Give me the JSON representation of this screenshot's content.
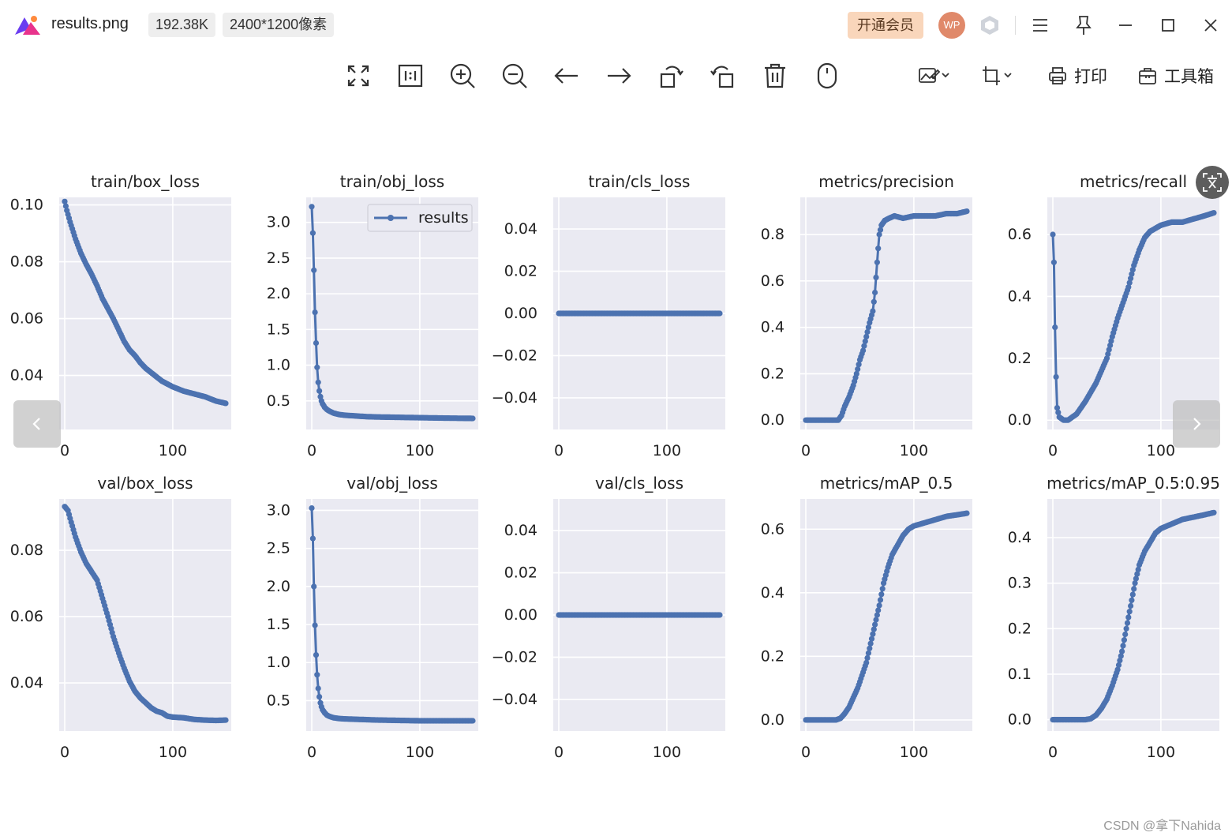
{
  "titlebar": {
    "filename": "results.png",
    "file_size": "192.38K",
    "dimensions": "2400*1200像素",
    "vip_label": "开通会员",
    "avatar_text": "WP"
  },
  "toolbar": {
    "print_label": "打印",
    "toolbox_label": "工具箱"
  },
  "watermark": "CSDN @拿下Nahida",
  "colors": {
    "series": "#4c72b0",
    "panel": "#eaeaf2",
    "grid": "#ffffff",
    "vip_bg": "#f9d6bb",
    "avatar_bg": "#e0896a"
  },
  "chart_data": [
    {
      "type": "line",
      "title": "train/box_loss",
      "legend": "",
      "x_range": [
        0,
        149
      ],
      "ylim": [
        0.021,
        0.10265
      ],
      "yticks": [
        0.04,
        0.06,
        0.08,
        0.1
      ],
      "ytick_labels": [
        "0.04",
        "0.06",
        "0.08",
        "0.10"
      ],
      "xticks": [
        0,
        100
      ],
      "xtick_labels": [
        "0",
        "100"
      ],
      "curve": [
        [
          0,
          0.1012
        ],
        [
          2,
          0.098
        ],
        [
          5,
          0.094
        ],
        [
          10,
          0.088
        ],
        [
          15,
          0.083
        ],
        [
          20,
          0.079
        ],
        [
          25,
          0.0755
        ],
        [
          30,
          0.0715
        ],
        [
          35,
          0.067
        ],
        [
          40,
          0.0635
        ],
        [
          45,
          0.06
        ],
        [
          50,
          0.056
        ],
        [
          55,
          0.052
        ],
        [
          60,
          0.049
        ],
        [
          65,
          0.047
        ],
        [
          70,
          0.0445
        ],
        [
          75,
          0.0425
        ],
        [
          80,
          0.041
        ],
        [
          85,
          0.0395
        ],
        [
          90,
          0.038
        ],
        [
          95,
          0.037
        ],
        [
          100,
          0.036
        ],
        [
          110,
          0.0345
        ],
        [
          120,
          0.0335
        ],
        [
          130,
          0.0325
        ],
        [
          140,
          0.031
        ],
        [
          149,
          0.0302
        ]
      ]
    },
    {
      "type": "line",
      "title": "train/obj_loss",
      "legend": "results",
      "x_range": [
        0,
        149
      ],
      "ylim": [
        0.1,
        3.35
      ],
      "yticks": [
        0.5,
        1.0,
        1.5,
        2.0,
        2.5,
        3.0
      ],
      "ytick_labels": [
        "0.5",
        "1.0",
        "1.5",
        "2.0",
        "2.5",
        "3.0"
      ],
      "xticks": [
        0,
        100
      ],
      "xtick_labels": [
        "0",
        "100"
      ],
      "curve": [
        [
          0,
          3.22
        ],
        [
          1,
          2.85
        ],
        [
          2,
          2.33
        ],
        [
          3,
          1.74
        ],
        [
          4,
          1.31
        ],
        [
          5,
          0.97
        ],
        [
          6,
          0.76
        ],
        [
          7,
          0.64
        ],
        [
          8,
          0.56
        ],
        [
          9,
          0.5
        ],
        [
          10,
          0.46
        ],
        [
          12,
          0.41
        ],
        [
          14,
          0.38
        ],
        [
          16,
          0.36
        ],
        [
          18,
          0.345
        ],
        [
          20,
          0.33
        ],
        [
          25,
          0.31
        ],
        [
          30,
          0.3
        ],
        [
          40,
          0.29
        ],
        [
          50,
          0.28
        ],
        [
          60,
          0.275
        ],
        [
          80,
          0.27
        ],
        [
          100,
          0.265
        ],
        [
          120,
          0.26
        ],
        [
          149,
          0.255
        ]
      ]
    },
    {
      "type": "line",
      "title": "train/cls_loss",
      "legend": "",
      "x_range": [
        0,
        149
      ],
      "ylim": [
        -0.055,
        0.055
      ],
      "yticks": [
        -0.04,
        -0.02,
        0.0,
        0.02,
        0.04
      ],
      "ytick_labels": [
        "−0.04",
        "−0.02",
        "0.00",
        "0.02",
        "0.04"
      ],
      "xticks": [
        0,
        100
      ],
      "xtick_labels": [
        "0",
        "100"
      ],
      "curve": [
        [
          0,
          0.0
        ],
        [
          149,
          0.0
        ]
      ]
    },
    {
      "type": "line",
      "title": "metrics/precision",
      "legend": "",
      "x_range": [
        0,
        149
      ],
      "ylim": [
        -0.04,
        0.96
      ],
      "yticks": [
        0.0,
        0.2,
        0.4,
        0.6,
        0.8
      ],
      "ytick_labels": [
        "0.0",
        "0.2",
        "0.4",
        "0.6",
        "0.8"
      ],
      "xticks": [
        0,
        100
      ],
      "xtick_labels": [
        "0",
        "100"
      ],
      "curve": [
        [
          0,
          0.0
        ],
        [
          10,
          0.0
        ],
        [
          20,
          0.0
        ],
        [
          30,
          0.0
        ],
        [
          33,
          0.02
        ],
        [
          36,
          0.06
        ],
        [
          40,
          0.1
        ],
        [
          44,
          0.15
        ],
        [
          47,
          0.2
        ],
        [
          50,
          0.26
        ],
        [
          53,
          0.3
        ],
        [
          56,
          0.36
        ],
        [
          59,
          0.42
        ],
        [
          62,
          0.47
        ],
        [
          64,
          0.55
        ],
        [
          66,
          0.68
        ],
        [
          68,
          0.8
        ],
        [
          70,
          0.84
        ],
        [
          73,
          0.86
        ],
        [
          77,
          0.87
        ],
        [
          82,
          0.88
        ],
        [
          90,
          0.87
        ],
        [
          100,
          0.88
        ],
        [
          110,
          0.88
        ],
        [
          120,
          0.88
        ],
        [
          130,
          0.89
        ],
        [
          140,
          0.89
        ],
        [
          149,
          0.9
        ]
      ]
    },
    {
      "type": "line",
      "title": "metrics/recall",
      "legend": "",
      "x_range": [
        0,
        149
      ],
      "ylim": [
        -0.03,
        0.72
      ],
      "yticks": [
        0.0,
        0.2,
        0.4,
        0.6
      ],
      "ytick_labels": [
        "0.0",
        "0.2",
        "0.4",
        "0.6"
      ],
      "xticks": [
        0,
        100
      ],
      "xtick_labels": [
        "0",
        "100"
      ],
      "curve": [
        [
          0,
          0.6
        ],
        [
          1,
          0.51
        ],
        [
          2,
          0.3
        ],
        [
          3,
          0.14
        ],
        [
          4,
          0.04
        ],
        [
          6,
          0.01
        ],
        [
          10,
          0.0
        ],
        [
          14,
          0.0
        ],
        [
          18,
          0.01
        ],
        [
          22,
          0.02
        ],
        [
          26,
          0.04
        ],
        [
          30,
          0.06
        ],
        [
          35,
          0.09
        ],
        [
          40,
          0.12
        ],
        [
          45,
          0.16
        ],
        [
          50,
          0.2
        ],
        [
          55,
          0.27
        ],
        [
          60,
          0.33
        ],
        [
          65,
          0.38
        ],
        [
          70,
          0.43
        ],
        [
          75,
          0.5
        ],
        [
          80,
          0.55
        ],
        [
          85,
          0.59
        ],
        [
          90,
          0.61
        ],
        [
          100,
          0.63
        ],
        [
          110,
          0.64
        ],
        [
          120,
          0.64
        ],
        [
          130,
          0.65
        ],
        [
          140,
          0.66
        ],
        [
          149,
          0.67
        ]
      ]
    },
    {
      "type": "line",
      "title": "val/box_loss",
      "legend": "",
      "x_range": [
        0,
        149
      ],
      "ylim": [
        0.0255,
        0.0955
      ],
      "yticks": [
        0.04,
        0.06,
        0.08
      ],
      "ytick_labels": [
        "0.04",
        "0.06",
        "0.08"
      ],
      "xticks": [
        0,
        100
      ],
      "xtick_labels": [
        "0",
        "100"
      ],
      "curve": [
        [
          0,
          0.0932
        ],
        [
          3,
          0.092
        ],
        [
          6,
          0.0885
        ],
        [
          10,
          0.084
        ],
        [
          15,
          0.0795
        ],
        [
          20,
          0.076
        ],
        [
          25,
          0.0735
        ],
        [
          30,
          0.071
        ],
        [
          35,
          0.0655
        ],
        [
          40,
          0.06
        ],
        [
          45,
          0.054
        ],
        [
          50,
          0.049
        ],
        [
          55,
          0.0445
        ],
        [
          60,
          0.0405
        ],
        [
          65,
          0.0375
        ],
        [
          70,
          0.0355
        ],
        [
          75,
          0.034
        ],
        [
          80,
          0.0325
        ],
        [
          85,
          0.0315
        ],
        [
          90,
          0.031
        ],
        [
          95,
          0.03
        ],
        [
          100,
          0.0297
        ],
        [
          110,
          0.0295
        ],
        [
          120,
          0.029
        ],
        [
          130,
          0.0288
        ],
        [
          140,
          0.0287
        ],
        [
          149,
          0.0288
        ]
      ]
    },
    {
      "type": "line",
      "title": "val/obj_loss",
      "legend": "",
      "x_range": [
        0,
        149
      ],
      "ylim": [
        0.1,
        3.15
      ],
      "yticks": [
        0.5,
        1.0,
        1.5,
        2.0,
        2.5,
        3.0
      ],
      "ytick_labels": [
        "0.5",
        "1.0",
        "1.5",
        "2.0",
        "2.5",
        "3.0"
      ],
      "xticks": [
        0,
        100
      ],
      "xtick_labels": [
        "0",
        "100"
      ],
      "curve": [
        [
          0,
          3.03
        ],
        [
          1,
          2.63
        ],
        [
          2,
          2.0
        ],
        [
          3,
          1.49
        ],
        [
          4,
          1.1
        ],
        [
          5,
          0.84
        ],
        [
          6,
          0.66
        ],
        [
          7,
          0.55
        ],
        [
          8,
          0.47
        ],
        [
          9,
          0.42
        ],
        [
          10,
          0.38
        ],
        [
          12,
          0.34
        ],
        [
          14,
          0.31
        ],
        [
          16,
          0.295
        ],
        [
          18,
          0.285
        ],
        [
          20,
          0.275
        ],
        [
          25,
          0.265
        ],
        [
          30,
          0.26
        ],
        [
          40,
          0.255
        ],
        [
          50,
          0.25
        ],
        [
          60,
          0.245
        ],
        [
          80,
          0.24
        ],
        [
          100,
          0.235
        ],
        [
          120,
          0.235
        ],
        [
          149,
          0.235
        ]
      ]
    },
    {
      "type": "line",
      "title": "val/cls_loss",
      "legend": "",
      "x_range": [
        0,
        149
      ],
      "ylim": [
        -0.055,
        0.055
      ],
      "yticks": [
        -0.04,
        -0.02,
        0.0,
        0.02,
        0.04
      ],
      "ytick_labels": [
        "−0.04",
        "−0.02",
        "0.00",
        "0.02",
        "0.04"
      ],
      "xticks": [
        0,
        100
      ],
      "xtick_labels": [
        "0",
        "100"
      ],
      "curve": [
        [
          0,
          0.0
        ],
        [
          149,
          0.0
        ]
      ]
    },
    {
      "type": "line",
      "title": "metrics/mAP_0.5",
      "legend": "",
      "x_range": [
        0,
        149
      ],
      "ylim": [
        -0.035,
        0.695
      ],
      "yticks": [
        0.0,
        0.2,
        0.4,
        0.6
      ],
      "ytick_labels": [
        "0.0",
        "0.2",
        "0.4",
        "0.6"
      ],
      "xticks": [
        0,
        100
      ],
      "xtick_labels": [
        "0",
        "100"
      ],
      "curve": [
        [
          0,
          0.0
        ],
        [
          10,
          0.0
        ],
        [
          20,
          0.0
        ],
        [
          28,
          0.0
        ],
        [
          32,
          0.005
        ],
        [
          36,
          0.02
        ],
        [
          40,
          0.04
        ],
        [
          44,
          0.07
        ],
        [
          48,
          0.1
        ],
        [
          52,
          0.14
        ],
        [
          56,
          0.18
        ],
        [
          60,
          0.24
        ],
        [
          64,
          0.3
        ],
        [
          68,
          0.36
        ],
        [
          72,
          0.43
        ],
        [
          76,
          0.48
        ],
        [
          80,
          0.52
        ],
        [
          85,
          0.55
        ],
        [
          90,
          0.58
        ],
        [
          95,
          0.6
        ],
        [
          100,
          0.61
        ],
        [
          110,
          0.62
        ],
        [
          120,
          0.63
        ],
        [
          130,
          0.64
        ],
        [
          140,
          0.645
        ],
        [
          149,
          0.65
        ]
      ]
    },
    {
      "type": "line",
      "title": "metrics/mAP_0.5:0.95",
      "legend": "",
      "x_range": [
        0,
        149
      ],
      "ylim": [
        -0.025,
        0.485
      ],
      "yticks": [
        0.0,
        0.1,
        0.2,
        0.3,
        0.4
      ],
      "ytick_labels": [
        "0.0",
        "0.1",
        "0.2",
        "0.3",
        "0.4"
      ],
      "xticks": [
        0,
        100
      ],
      "xtick_labels": [
        "0",
        "100"
      ],
      "curve": [
        [
          0,
          0.0
        ],
        [
          10,
          0.0
        ],
        [
          20,
          0.0
        ],
        [
          30,
          0.0
        ],
        [
          35,
          0.002
        ],
        [
          40,
          0.01
        ],
        [
          45,
          0.025
        ],
        [
          50,
          0.045
        ],
        [
          55,
          0.075
        ],
        [
          60,
          0.11
        ],
        [
          64,
          0.15
        ],
        [
          68,
          0.2
        ],
        [
          72,
          0.25
        ],
        [
          76,
          0.3
        ],
        [
          80,
          0.34
        ],
        [
          85,
          0.37
        ],
        [
          90,
          0.39
        ],
        [
          95,
          0.41
        ],
        [
          100,
          0.42
        ],
        [
          110,
          0.43
        ],
        [
          120,
          0.44
        ],
        [
          130,
          0.445
        ],
        [
          140,
          0.45
        ],
        [
          149,
          0.455
        ]
      ]
    }
  ]
}
